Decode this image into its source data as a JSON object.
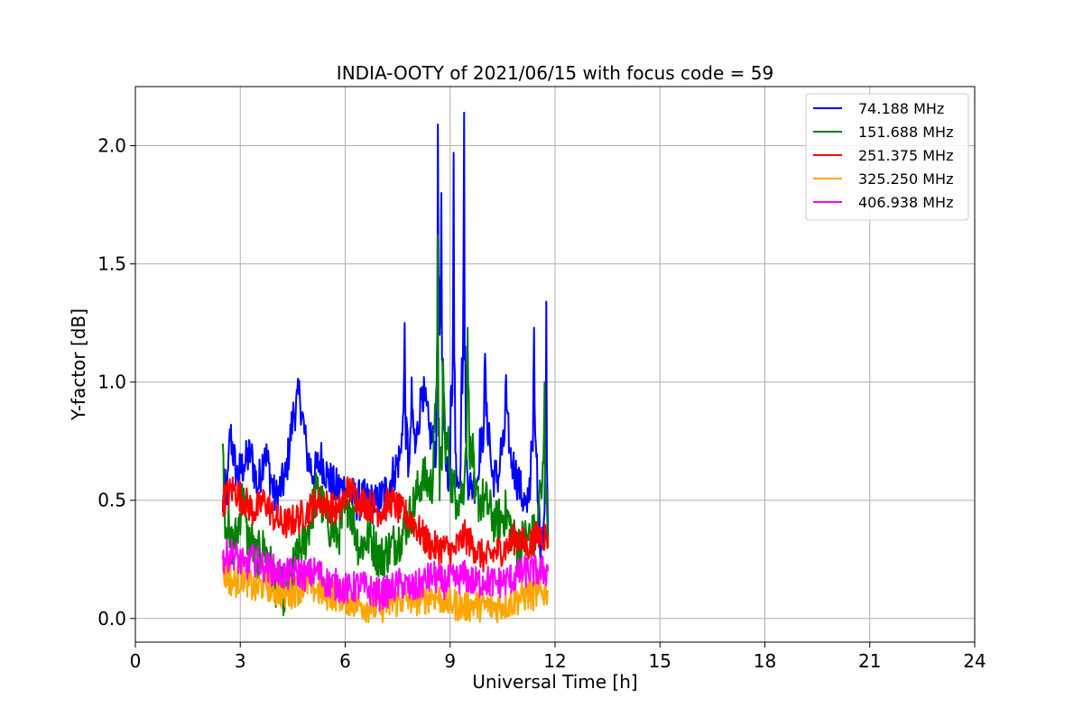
{
  "chart_data": {
    "type": "line",
    "title": "INDIA-OOTY of 2021/06/15 with focus code = 59",
    "xlabel": "Universal Time [h]",
    "ylabel": "Y-factor [dB]",
    "xlim": [
      0,
      24
    ],
    "ylim": [
      -0.1,
      2.25
    ],
    "xticks": [
      0,
      3,
      6,
      9,
      12,
      15,
      18,
      21,
      24
    ],
    "yticks": [
      0.0,
      0.5,
      1.0,
      1.5,
      2.0
    ],
    "xtick_labels": [
      "0",
      "3",
      "6",
      "9",
      "12",
      "15",
      "18",
      "21",
      "24"
    ],
    "ytick_labels": [
      "0.0",
      "0.5",
      "1.0",
      "1.5",
      "2.0"
    ],
    "grid": true,
    "legend_position": "top-right",
    "series": [
      {
        "name": " 74.188 MHz",
        "color": "#0000ff",
        "x": [
          2.5,
          2.7,
          2.9,
          3.1,
          3.3,
          3.5,
          3.7,
          4.0,
          4.3,
          4.5,
          4.7,
          4.9,
          5.1,
          5.3,
          5.5,
          5.7,
          6.0,
          6.3,
          6.6,
          6.9,
          7.2,
          7.4,
          7.6,
          7.7,
          7.8,
          7.9,
          8.0,
          8.2,
          8.4,
          8.6,
          8.65,
          8.7,
          8.75,
          8.8,
          8.9,
          9.0,
          9.1,
          9.15,
          9.2,
          9.3,
          9.4,
          9.45,
          9.5,
          9.6,
          9.8,
          10.0,
          10.15,
          10.2,
          10.4,
          10.6,
          10.7,
          10.8,
          11.0,
          11.2,
          11.3,
          11.4,
          11.5,
          11.6,
          11.7,
          11.75,
          11.8
        ],
        "y": [
          0.45,
          0.8,
          0.6,
          0.65,
          0.7,
          0.55,
          0.72,
          0.5,
          0.6,
          0.85,
          0.95,
          0.7,
          0.6,
          0.68,
          0.6,
          0.55,
          0.55,
          0.5,
          0.5,
          0.48,
          0.55,
          0.62,
          0.7,
          1.25,
          0.6,
          1.02,
          0.7,
          0.98,
          0.8,
          0.7,
          2.09,
          1.2,
          1.8,
          0.8,
          0.65,
          0.6,
          1.97,
          0.7,
          0.6,
          0.65,
          2.14,
          0.75,
          0.6,
          0.55,
          0.6,
          1.12,
          0.7,
          0.6,
          0.6,
          1.03,
          0.7,
          0.65,
          0.55,
          0.45,
          0.6,
          1.23,
          0.5,
          0.3,
          0.45,
          1.34,
          0.35
        ]
      },
      {
        "name": "151.688 MHz",
        "color": "#008000",
        "x": [
          2.5,
          2.7,
          2.9,
          3.1,
          3.4,
          3.7,
          4.0,
          4.3,
          4.6,
          4.9,
          5.2,
          5.5,
          5.8,
          6.1,
          6.4,
          6.7,
          7.0,
          7.3,
          7.6,
          7.9,
          8.2,
          8.5,
          8.65,
          8.7,
          8.8,
          9.0,
          9.2,
          9.4,
          9.5,
          9.7,
          10.0,
          10.3,
          10.6,
          10.9,
          11.2,
          11.5,
          11.7,
          11.8
        ],
        "y": [
          0.74,
          0.3,
          0.35,
          0.55,
          0.25,
          0.3,
          0.15,
          0.1,
          0.25,
          0.35,
          0.55,
          0.4,
          0.35,
          0.5,
          0.3,
          0.35,
          0.25,
          0.3,
          0.35,
          0.45,
          0.6,
          0.55,
          1.62,
          0.5,
          1.1,
          0.6,
          0.5,
          0.55,
          1.23,
          0.5,
          0.5,
          0.4,
          0.45,
          0.3,
          0.35,
          0.35,
          1.0,
          0.3
        ]
      },
      {
        "name": "251.375 MHz",
        "color": "#ff0000",
        "x": [
          2.5,
          2.8,
          3.1,
          3.4,
          3.7,
          4.0,
          4.3,
          4.6,
          4.9,
          5.2,
          5.5,
          5.8,
          6.1,
          6.4,
          6.7,
          7.0,
          7.3,
          7.6,
          7.9,
          8.2,
          8.5,
          8.8,
          9.1,
          9.4,
          9.7,
          10.0,
          10.3,
          10.6,
          10.9,
          11.2,
          11.5,
          11.8
        ],
        "y": [
          0.5,
          0.55,
          0.5,
          0.45,
          0.5,
          0.42,
          0.4,
          0.42,
          0.45,
          0.5,
          0.48,
          0.45,
          0.55,
          0.5,
          0.48,
          0.45,
          0.5,
          0.45,
          0.42,
          0.35,
          0.3,
          0.3,
          0.28,
          0.35,
          0.3,
          0.25,
          0.28,
          0.3,
          0.35,
          0.3,
          0.35,
          0.35
        ]
      },
      {
        "name": "325.250 MHz",
        "color": "#ffa500",
        "x": [
          2.5,
          2.8,
          3.1,
          3.4,
          3.7,
          4.0,
          4.3,
          4.6,
          4.9,
          5.2,
          5.5,
          5.8,
          6.1,
          6.4,
          6.7,
          7.0,
          7.3,
          7.6,
          7.9,
          8.2,
          8.5,
          8.8,
          9.1,
          9.4,
          9.7,
          10.0,
          10.3,
          10.6,
          10.9,
          11.2,
          11.5,
          11.8
        ],
        "y": [
          0.2,
          0.15,
          0.18,
          0.12,
          0.15,
          0.12,
          0.1,
          0.12,
          0.15,
          0.12,
          0.1,
          0.1,
          0.08,
          0.06,
          0.05,
          0.05,
          0.06,
          0.08,
          0.08,
          0.08,
          0.1,
          0.08,
          0.06,
          0.05,
          0.06,
          0.05,
          0.05,
          0.06,
          0.08,
          0.1,
          0.1,
          0.12
        ]
      },
      {
        "name": "406.938 MHz",
        "color": "#ff00ff",
        "x": [
          2.5,
          2.8,
          3.1,
          3.4,
          3.7,
          4.0,
          4.3,
          4.6,
          4.9,
          5.2,
          5.5,
          5.8,
          6.1,
          6.4,
          6.7,
          7.0,
          7.3,
          7.6,
          7.9,
          8.2,
          8.5,
          8.8,
          9.1,
          9.4,
          9.7,
          10.0,
          10.3,
          10.6,
          10.9,
          11.2,
          11.5,
          11.8
        ],
        "y": [
          0.25,
          0.28,
          0.22,
          0.25,
          0.22,
          0.2,
          0.18,
          0.2,
          0.18,
          0.2,
          0.15,
          0.14,
          0.12,
          0.14,
          0.12,
          0.1,
          0.12,
          0.15,
          0.12,
          0.15,
          0.18,
          0.15,
          0.16,
          0.18,
          0.15,
          0.16,
          0.15,
          0.16,
          0.18,
          0.2,
          0.2,
          0.2
        ]
      }
    ]
  }
}
